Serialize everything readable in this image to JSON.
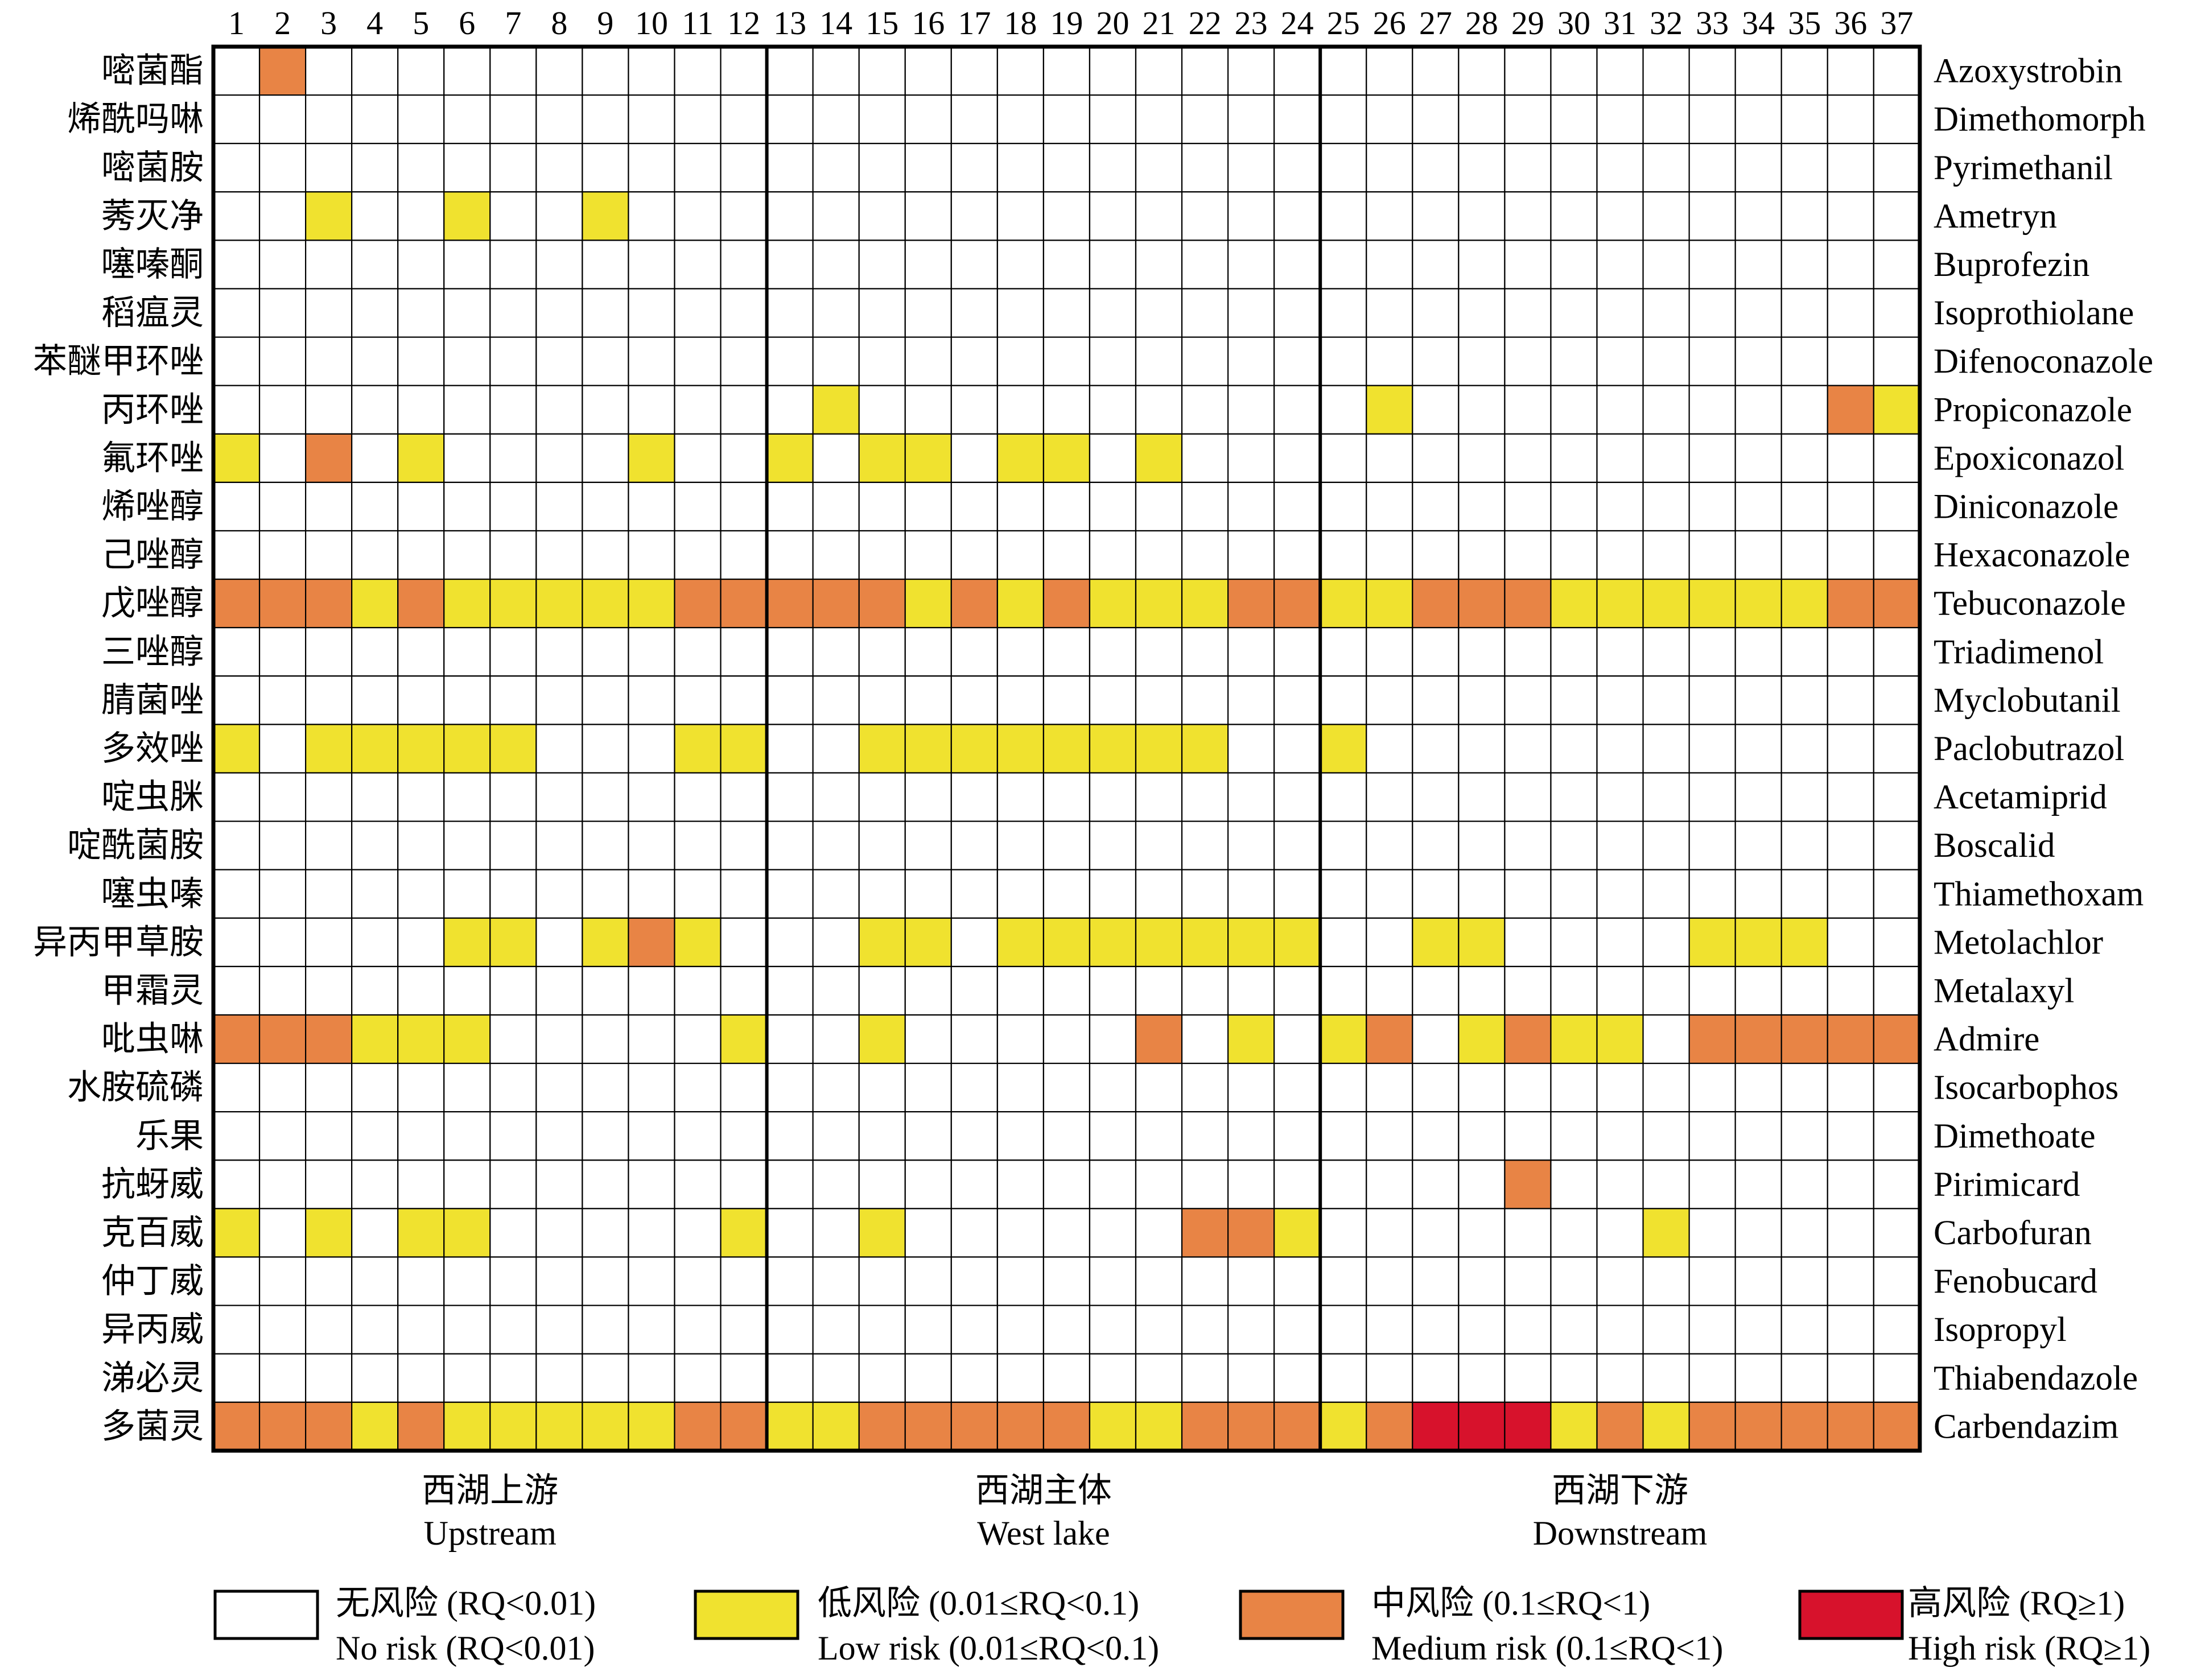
{
  "chart_data": {
    "type": "heatmap",
    "columns": [
      "1",
      "2",
      "3",
      "4",
      "5",
      "6",
      "7",
      "8",
      "9",
      "10",
      "11",
      "12",
      "13",
      "14",
      "15",
      "16",
      "17",
      "18",
      "19",
      "20",
      "21",
      "22",
      "23",
      "24",
      "25",
      "26",
      "27",
      "28",
      "29",
      "30",
      "31",
      "32",
      "33",
      "34",
      "35",
      "36",
      "37"
    ],
    "rows": [
      {
        "cn": "嘧菌酯",
        "en": "Azoxystrobin"
      },
      {
        "cn": "烯酰吗啉",
        "en": "Dimethomorph"
      },
      {
        "cn": "嘧菌胺",
        "en": "Pyrimethanil"
      },
      {
        "cn": "莠灭净",
        "en": "Ametryn"
      },
      {
        "cn": "噻嗪酮",
        "en": "Buprofezin"
      },
      {
        "cn": "稻瘟灵",
        "en": "Isoprothiolane"
      },
      {
        "cn": "苯醚甲环唑",
        "en": "Difenoconazole"
      },
      {
        "cn": "丙环唑",
        "en": "Propiconazole"
      },
      {
        "cn": "氟环唑",
        "en": "Epoxiconazol"
      },
      {
        "cn": "烯唑醇",
        "en": "Diniconazole"
      },
      {
        "cn": "己唑醇",
        "en": "Hexaconazole"
      },
      {
        "cn": "戊唑醇",
        "en": "Tebuconazole"
      },
      {
        "cn": "三唑醇",
        "en": "Triadimenol"
      },
      {
        "cn": "腈菌唑",
        "en": "Myclobutanil"
      },
      {
        "cn": "多效唑",
        "en": "Paclobutrazol"
      },
      {
        "cn": "啶虫脒",
        "en": "Acetamiprid"
      },
      {
        "cn": "啶酰菌胺",
        "en": "Boscalid"
      },
      {
        "cn": "噻虫嗪",
        "en": "Thiamethoxam"
      },
      {
        "cn": "异丙甲草胺",
        "en": "Metolachlor"
      },
      {
        "cn": "甲霜灵",
        "en": "Metalaxyl"
      },
      {
        "cn": "吡虫啉",
        "en": "Admire"
      },
      {
        "cn": "水胺硫磷",
        "en": "Isocarbophos"
      },
      {
        "cn": "乐果",
        "en": "Dimethoate"
      },
      {
        "cn": "抗蚜威",
        "en": "Pirimicard"
      },
      {
        "cn": "克百威",
        "en": "Carbofuran"
      },
      {
        "cn": "仲丁威",
        "en": "Fenobucard"
      },
      {
        "cn": "异丙威",
        "en": "Isopropyl"
      },
      {
        "cn": "涕必灵",
        "en": "Thiabendazole"
      },
      {
        "cn": "多菌灵",
        "en": "Carbendazim"
      }
    ],
    "levels": [
      [
        0,
        2,
        0,
        0,
        0,
        0,
        0,
        0,
        0,
        0,
        0,
        0,
        0,
        0,
        0,
        0,
        0,
        0,
        0,
        0,
        0,
        0,
        0,
        0,
        0,
        0,
        0,
        0,
        0,
        0,
        0,
        0,
        0,
        0,
        0,
        0,
        0
      ],
      [
        0,
        0,
        0,
        0,
        0,
        0,
        0,
        0,
        0,
        0,
        0,
        0,
        0,
        0,
        0,
        0,
        0,
        0,
        0,
        0,
        0,
        0,
        0,
        0,
        0,
        0,
        0,
        0,
        0,
        0,
        0,
        0,
        0,
        0,
        0,
        0,
        0
      ],
      [
        0,
        0,
        0,
        0,
        0,
        0,
        0,
        0,
        0,
        0,
        0,
        0,
        0,
        0,
        0,
        0,
        0,
        0,
        0,
        0,
        0,
        0,
        0,
        0,
        0,
        0,
        0,
        0,
        0,
        0,
        0,
        0,
        0,
        0,
        0,
        0,
        0
      ],
      [
        0,
        0,
        1,
        0,
        0,
        1,
        0,
        0,
        1,
        0,
        0,
        0,
        0,
        0,
        0,
        0,
        0,
        0,
        0,
        0,
        0,
        0,
        0,
        0,
        0,
        0,
        0,
        0,
        0,
        0,
        0,
        0,
        0,
        0,
        0,
        0,
        0
      ],
      [
        0,
        0,
        0,
        0,
        0,
        0,
        0,
        0,
        0,
        0,
        0,
        0,
        0,
        0,
        0,
        0,
        0,
        0,
        0,
        0,
        0,
        0,
        0,
        0,
        0,
        0,
        0,
        0,
        0,
        0,
        0,
        0,
        0,
        0,
        0,
        0,
        0
      ],
      [
        0,
        0,
        0,
        0,
        0,
        0,
        0,
        0,
        0,
        0,
        0,
        0,
        0,
        0,
        0,
        0,
        0,
        0,
        0,
        0,
        0,
        0,
        0,
        0,
        0,
        0,
        0,
        0,
        0,
        0,
        0,
        0,
        0,
        0,
        0,
        0,
        0
      ],
      [
        0,
        0,
        0,
        0,
        0,
        0,
        0,
        0,
        0,
        0,
        0,
        0,
        0,
        0,
        0,
        0,
        0,
        0,
        0,
        0,
        0,
        0,
        0,
        0,
        0,
        0,
        0,
        0,
        0,
        0,
        0,
        0,
        0,
        0,
        0,
        0,
        0
      ],
      [
        0,
        0,
        0,
        0,
        0,
        0,
        0,
        0,
        0,
        0,
        0,
        0,
        0,
        1,
        0,
        0,
        0,
        0,
        0,
        0,
        0,
        0,
        0,
        0,
        0,
        1,
        0,
        0,
        0,
        0,
        0,
        0,
        0,
        0,
        0,
        2,
        1
      ],
      [
        1,
        0,
        2,
        0,
        1,
        0,
        0,
        0,
        0,
        1,
        0,
        0,
        1,
        0,
        1,
        1,
        0,
        1,
        1,
        0,
        1,
        0,
        0,
        0,
        0,
        0,
        0,
        0,
        0,
        0,
        0,
        0,
        0,
        0,
        0,
        0,
        0
      ],
      [
        0,
        0,
        0,
        0,
        0,
        0,
        0,
        0,
        0,
        0,
        0,
        0,
        0,
        0,
        0,
        0,
        0,
        0,
        0,
        0,
        0,
        0,
        0,
        0,
        0,
        0,
        0,
        0,
        0,
        0,
        0,
        0,
        0,
        0,
        0,
        0,
        0
      ],
      [
        0,
        0,
        0,
        0,
        0,
        0,
        0,
        0,
        0,
        0,
        0,
        0,
        0,
        0,
        0,
        0,
        0,
        0,
        0,
        0,
        0,
        0,
        0,
        0,
        0,
        0,
        0,
        0,
        0,
        0,
        0,
        0,
        0,
        0,
        0,
        0,
        0
      ],
      [
        2,
        2,
        2,
        1,
        2,
        1,
        1,
        1,
        1,
        1,
        2,
        2,
        2,
        2,
        2,
        1,
        2,
        1,
        2,
        1,
        1,
        1,
        2,
        2,
        1,
        1,
        2,
        2,
        2,
        1,
        1,
        1,
        1,
        1,
        1,
        2,
        2
      ],
      [
        0,
        0,
        0,
        0,
        0,
        0,
        0,
        0,
        0,
        0,
        0,
        0,
        0,
        0,
        0,
        0,
        0,
        0,
        0,
        0,
        0,
        0,
        0,
        0,
        0,
        0,
        0,
        0,
        0,
        0,
        0,
        0,
        0,
        0,
        0,
        0,
        0
      ],
      [
        0,
        0,
        0,
        0,
        0,
        0,
        0,
        0,
        0,
        0,
        0,
        0,
        0,
        0,
        0,
        0,
        0,
        0,
        0,
        0,
        0,
        0,
        0,
        0,
        0,
        0,
        0,
        0,
        0,
        0,
        0,
        0,
        0,
        0,
        0,
        0,
        0
      ],
      [
        1,
        0,
        1,
        1,
        1,
        1,
        1,
        0,
        0,
        0,
        1,
        1,
        0,
        0,
        1,
        1,
        1,
        1,
        1,
        1,
        1,
        1,
        0,
        0,
        1,
        0,
        0,
        0,
        0,
        0,
        0,
        0,
        0,
        0,
        0,
        0,
        0
      ],
      [
        0,
        0,
        0,
        0,
        0,
        0,
        0,
        0,
        0,
        0,
        0,
        0,
        0,
        0,
        0,
        0,
        0,
        0,
        0,
        0,
        0,
        0,
        0,
        0,
        0,
        0,
        0,
        0,
        0,
        0,
        0,
        0,
        0,
        0,
        0,
        0,
        0
      ],
      [
        0,
        0,
        0,
        0,
        0,
        0,
        0,
        0,
        0,
        0,
        0,
        0,
        0,
        0,
        0,
        0,
        0,
        0,
        0,
        0,
        0,
        0,
        0,
        0,
        0,
        0,
        0,
        0,
        0,
        0,
        0,
        0,
        0,
        0,
        0,
        0,
        0
      ],
      [
        0,
        0,
        0,
        0,
        0,
        0,
        0,
        0,
        0,
        0,
        0,
        0,
        0,
        0,
        0,
        0,
        0,
        0,
        0,
        0,
        0,
        0,
        0,
        0,
        0,
        0,
        0,
        0,
        0,
        0,
        0,
        0,
        0,
        0,
        0,
        0,
        0
      ],
      [
        0,
        0,
        0,
        0,
        0,
        1,
        1,
        0,
        1,
        2,
        1,
        0,
        0,
        0,
        1,
        1,
        0,
        1,
        1,
        1,
        1,
        1,
        1,
        1,
        0,
        0,
        1,
        1,
        0,
        0,
        0,
        0,
        1,
        1,
        1,
        0,
        0
      ],
      [
        0,
        0,
        0,
        0,
        0,
        0,
        0,
        0,
        0,
        0,
        0,
        0,
        0,
        0,
        0,
        0,
        0,
        0,
        0,
        0,
        0,
        0,
        0,
        0,
        0,
        0,
        0,
        0,
        0,
        0,
        0,
        0,
        0,
        0,
        0,
        0,
        0
      ],
      [
        2,
        2,
        2,
        1,
        1,
        1,
        0,
        0,
        0,
        0,
        0,
        1,
        0,
        0,
        1,
        0,
        0,
        0,
        0,
        0,
        2,
        0,
        1,
        0,
        1,
        2,
        0,
        1,
        2,
        1,
        1,
        0,
        2,
        2,
        2,
        2,
        2
      ],
      [
        0,
        0,
        0,
        0,
        0,
        0,
        0,
        0,
        0,
        0,
        0,
        0,
        0,
        0,
        0,
        0,
        0,
        0,
        0,
        0,
        0,
        0,
        0,
        0,
        0,
        0,
        0,
        0,
        0,
        0,
        0,
        0,
        0,
        0,
        0,
        0,
        0
      ],
      [
        0,
        0,
        0,
        0,
        0,
        0,
        0,
        0,
        0,
        0,
        0,
        0,
        0,
        0,
        0,
        0,
        0,
        0,
        0,
        0,
        0,
        0,
        0,
        0,
        0,
        0,
        0,
        0,
        0,
        0,
        0,
        0,
        0,
        0,
        0,
        0,
        0
      ],
      [
        0,
        0,
        0,
        0,
        0,
        0,
        0,
        0,
        0,
        0,
        0,
        0,
        0,
        0,
        0,
        0,
        0,
        0,
        0,
        0,
        0,
        0,
        0,
        0,
        0,
        0,
        0,
        0,
        2,
        0,
        0,
        0,
        0,
        0,
        0,
        0,
        0
      ],
      [
        1,
        0,
        1,
        0,
        1,
        1,
        0,
        0,
        0,
        0,
        0,
        1,
        0,
        0,
        1,
        0,
        0,
        0,
        0,
        0,
        0,
        2,
        2,
        1,
        0,
        0,
        0,
        0,
        0,
        0,
        0,
        1,
        0,
        0,
        0,
        0,
        0
      ],
      [
        0,
        0,
        0,
        0,
        0,
        0,
        0,
        0,
        0,
        0,
        0,
        0,
        0,
        0,
        0,
        0,
        0,
        0,
        0,
        0,
        0,
        0,
        0,
        0,
        0,
        0,
        0,
        0,
        0,
        0,
        0,
        0,
        0,
        0,
        0,
        0,
        0
      ],
      [
        0,
        0,
        0,
        0,
        0,
        0,
        0,
        0,
        0,
        0,
        0,
        0,
        0,
        0,
        0,
        0,
        0,
        0,
        0,
        0,
        0,
        0,
        0,
        0,
        0,
        0,
        0,
        0,
        0,
        0,
        0,
        0,
        0,
        0,
        0,
        0,
        0
      ],
      [
        0,
        0,
        0,
        0,
        0,
        0,
        0,
        0,
        0,
        0,
        0,
        0,
        0,
        0,
        0,
        0,
        0,
        0,
        0,
        0,
        0,
        0,
        0,
        0,
        0,
        0,
        0,
        0,
        0,
        0,
        0,
        0,
        0,
        0,
        0,
        0,
        0
      ],
      [
        2,
        2,
        2,
        1,
        2,
        1,
        1,
        1,
        1,
        1,
        2,
        2,
        1,
        1,
        2,
        2,
        2,
        2,
        2,
        1,
        1,
        2,
        2,
        2,
        1,
        2,
        3,
        3,
        3,
        1,
        2,
        1,
        2,
        2,
        2,
        2,
        2
      ]
    ],
    "regions": [
      {
        "cn": "西湖上游",
        "en": "Upstream",
        "columns": [
          1,
          12
        ]
      },
      {
        "cn": "西湖主体",
        "en": "West lake",
        "columns": [
          13,
          24
        ]
      },
      {
        "cn": "西湖下游",
        "en": "Downstream",
        "columns": [
          25,
          37
        ]
      }
    ],
    "legend": [
      {
        "cn": "无风险 (RQ<0.01)",
        "en": "No risk (RQ<0.01)",
        "color": "#ffffff"
      },
      {
        "cn": "低风险 (0.01≤RQ<0.1)",
        "en": "Low risk (0.01≤RQ<0.1)",
        "color": "#f0e22f"
      },
      {
        "cn": "中风险 (0.1≤RQ<1)",
        "en": "Medium risk (0.1≤RQ<1)",
        "color": "#e88445"
      },
      {
        "cn": "高风险 (RQ≥1)",
        "en": "High risk (RQ≥1)",
        "color": "#d7122c"
      }
    ],
    "grid": true
  }
}
